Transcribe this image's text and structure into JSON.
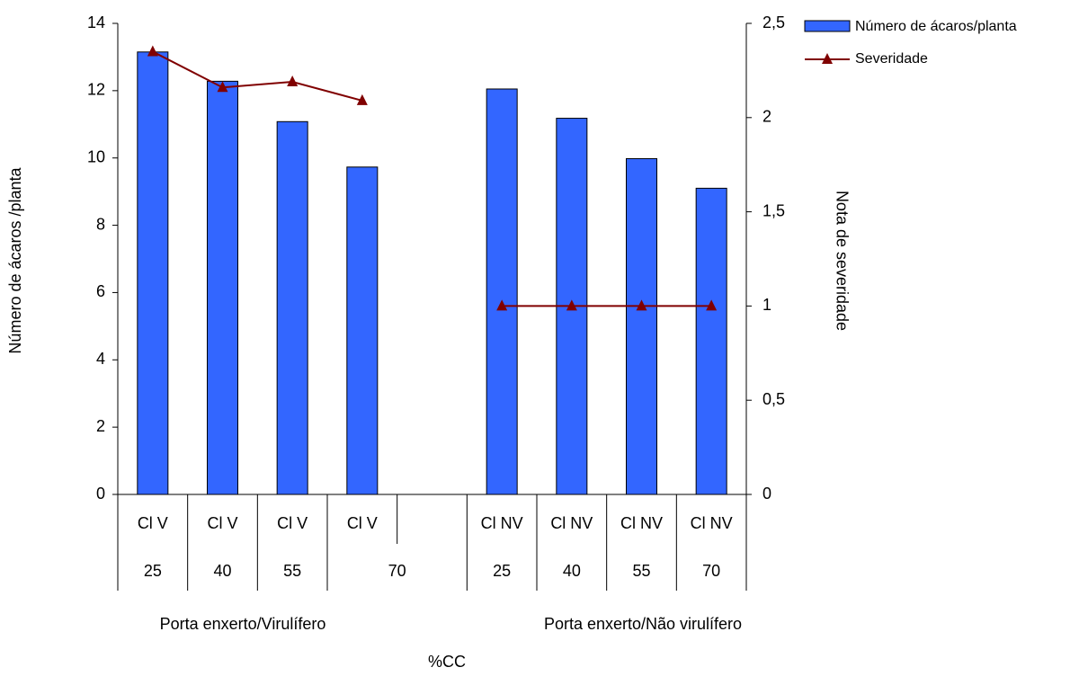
{
  "chart_data": {
    "type": "bar_line",
    "y_label": "Número de ácaros /planta",
    "y2_label": "Nota de severidade",
    "x_label": "%CC",
    "categories": [
      "Cl V",
      "Cl V",
      "Cl V",
      "Cl V",
      null,
      "Cl NV",
      "Cl NV",
      "Cl NV",
      "Cl NV"
    ],
    "percent_cc": [
      25,
      40,
      55,
      70,
      null,
      25,
      40,
      55,
      70
    ],
    "groups": [
      "Porta enxerto/Virulífero",
      "Porta enxerto/Não virulífero"
    ],
    "series": [
      {
        "name": "Número de ácaros/planta",
        "color": "#3366ff",
        "values": [
          13.15,
          12.28,
          11.08,
          9.73,
          null,
          12.05,
          11.18,
          9.98,
          9.1
        ]
      },
      {
        "name": "Severidade",
        "color": "#800000",
        "axis": "y2",
        "values": [
          2.35,
          2.16,
          2.19,
          2.09,
          null,
          1,
          1,
          1,
          1
        ]
      }
    ],
    "ylim": [
      0,
      14
    ],
    "yticks": [
      0,
      2,
      4,
      6,
      8,
      10,
      12,
      14
    ],
    "y2lim": [
      0,
      2.5
    ],
    "y2ticks": [
      0,
      {
        "value": 0.5,
        "label": "0,5"
      },
      1,
      {
        "value": 1.5,
        "label": "1,5"
      },
      2,
      {
        "value": 2.5,
        "label": "2,5"
      }
    ],
    "legend": "top-right"
  }
}
